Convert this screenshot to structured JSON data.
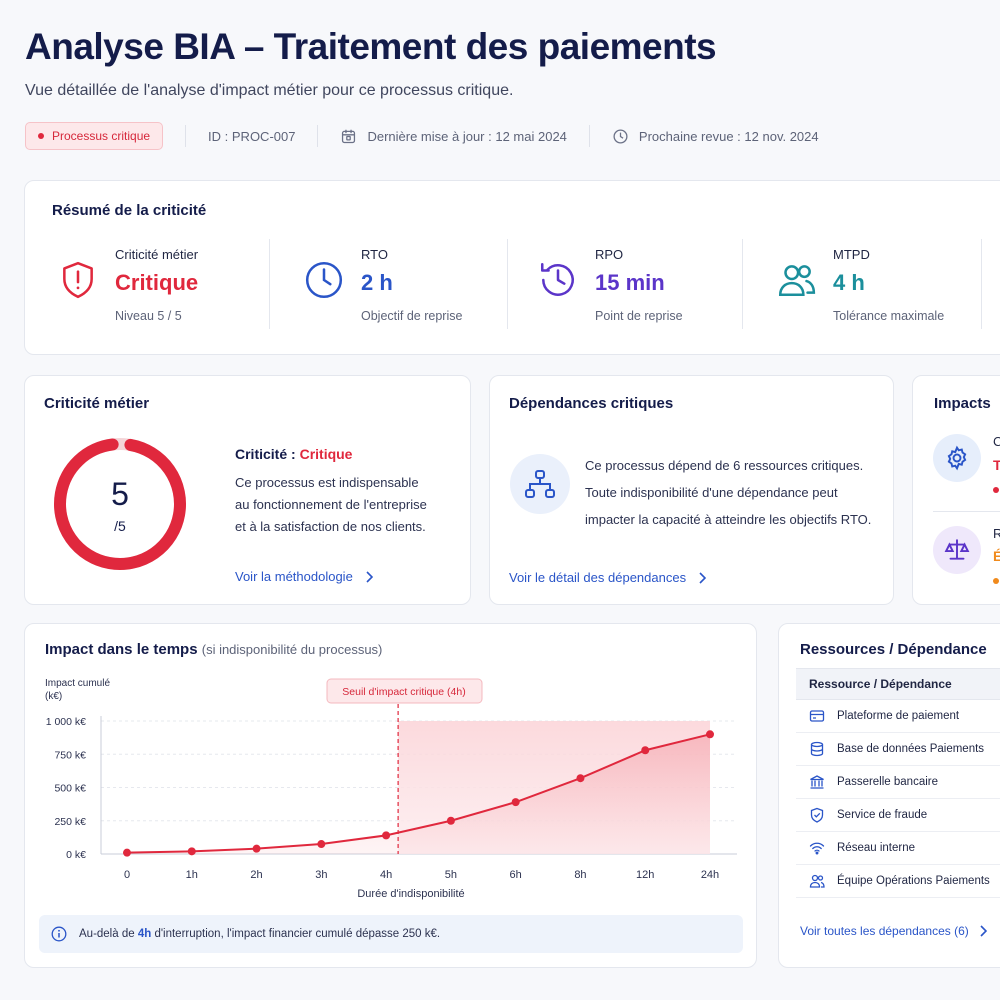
{
  "header": {
    "title": "Analyse BIA – Traitement des paiements",
    "subtitle": "Vue détaillée de l'analyse d'impact métier pour ce processus critique.",
    "badge": "Processus critique",
    "id": "ID : PROC-007",
    "last_update": "Dernière mise à jour : 12 mai 2024",
    "next_review": "Prochaine revue : 12 nov. 2024"
  },
  "summary": {
    "title": "Résumé de la criticité",
    "kpis": [
      {
        "label": "Criticité métier",
        "value": "Critique",
        "caption": "Niveau 5 / 5",
        "icon": "shield-alert-icon",
        "color": "#e0283d"
      },
      {
        "label": "RTO",
        "value": "2 h",
        "caption": "Objectif de reprise",
        "icon": "clock-icon",
        "color": "#2a55c8"
      },
      {
        "label": "RPO",
        "value": "15 min",
        "caption": "Point de reprise",
        "icon": "history-icon",
        "color": "#5b35c9"
      },
      {
        "label": "MTPD",
        "value": "4 h",
        "caption": "Tolérance maximale",
        "icon": "users-icon",
        "color": "#1b8f9c"
      }
    ]
  },
  "criticality": {
    "title": "Criticité métier",
    "score": "5",
    "score_max": "/5",
    "score_fraction": 1,
    "heading_prefix": "Criticité : ",
    "heading_value": "Critique",
    "lines": [
      "Ce processus est indispensable",
      "au fonctionnement de l'entreprise",
      "et à la satisfaction de nos clients."
    ],
    "link": "Voir la méthodologie"
  },
  "dependencies": {
    "title": "Dépendances critiques",
    "lines": [
      "Ce processus dépend de 6 ressources critiques.",
      "Toute indisponibilité d'une dépendance peut",
      "impacter la capacité à atteindre les objectifs RTO."
    ],
    "link": "Voir le détail des dépendances"
  },
  "impacts": {
    "title": "Impacts",
    "items": [
      {
        "icon": "gear-icon",
        "label": "C",
        "value": "T",
        "color": "#e0283d"
      },
      {
        "icon": "scale-icon",
        "label": "R",
        "value": "É",
        "color": "#f08a1c"
      }
    ]
  },
  "chart": {
    "title": "Impact dans le temps",
    "title_note": "(si indisponibilité du processus)",
    "info_prefix": "Au-delà de ",
    "info_highlight": "4h",
    "info_suffix": " d'interruption, l'impact financier cumulé dépasse 250 k€."
  },
  "chart_data": {
    "type": "line",
    "title": "Impact dans le temps",
    "xlabel": "Durée d'indisponibilité",
    "ylabel": "Impact cumulé (k€)",
    "categories": [
      "0",
      "1h",
      "2h",
      "3h",
      "4h",
      "5h",
      "6h",
      "8h",
      "12h",
      "24h"
    ],
    "values": [
      10,
      20,
      40,
      75,
      140,
      250,
      390,
      570,
      780,
      900
    ],
    "y_ticks": [
      "0 k€",
      "250 k€",
      "500 k€",
      "750 k€",
      "1 000 k€"
    ],
    "ylim": [
      0,
      1000
    ],
    "threshold_label": "Seuil d'impact critique (4h)",
    "threshold_index": 4,
    "grid": true,
    "color": "#e0283d"
  },
  "resources": {
    "title": "Ressources / Dépendance",
    "header": "Ressource / Dépendance",
    "rows": [
      {
        "icon": "card-icon",
        "label": "Plateforme de paiement"
      },
      {
        "icon": "database-icon",
        "label": "Base de données Paiements"
      },
      {
        "icon": "bank-icon",
        "label": "Passerelle bancaire"
      },
      {
        "icon": "shield-check-icon",
        "label": "Service de fraude"
      },
      {
        "icon": "wifi-icon",
        "label": "Réseau interne"
      },
      {
        "icon": "team-icon",
        "label": "Équipe Opérations Paiements"
      }
    ],
    "link": "Voir toutes les dépendances (6)"
  }
}
